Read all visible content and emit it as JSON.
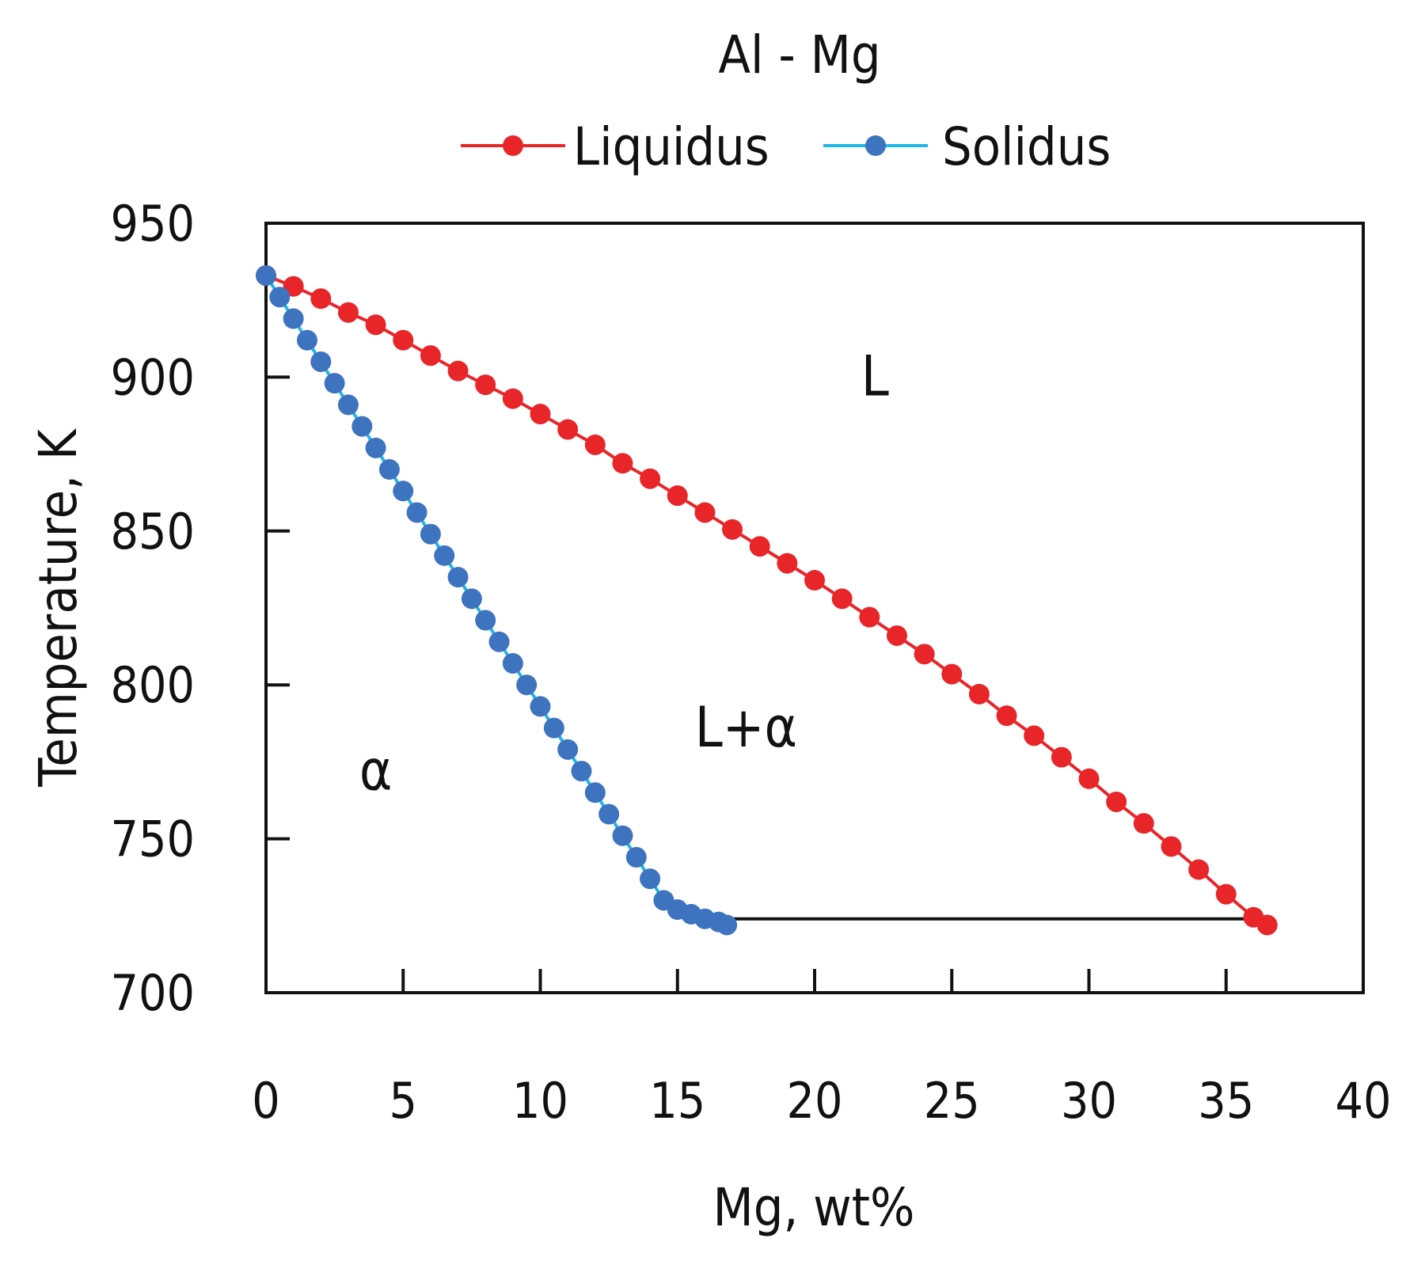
{
  "chart_data": {
    "type": "scatter",
    "title": "Al - Mg",
    "xlabel": "Mg, wt%",
    "ylabel": "Temperature, K",
    "xlim": [
      0,
      40
    ],
    "ylim": [
      700,
      950
    ],
    "xticks": [
      0,
      5,
      10,
      15,
      20,
      25,
      30,
      35,
      40
    ],
    "yticks": [
      700,
      750,
      800,
      850,
      900,
      950
    ],
    "grid": false,
    "legend_position": "top-center",
    "series": [
      {
        "name": "Liquidus",
        "color": "#e8262a",
        "line_color": "#e8262a",
        "marker": "circle",
        "x": [
          0,
          1,
          2,
          3,
          4,
          5,
          6,
          7,
          8,
          9,
          10,
          11,
          12,
          13,
          14,
          15,
          16,
          17,
          18,
          19,
          20,
          21,
          22,
          23,
          24,
          25,
          26,
          27,
          28,
          29,
          30,
          31,
          32,
          33,
          34,
          35,
          36,
          36.5
        ],
        "y": [
          933,
          929.5,
          925.5,
          921,
          917,
          912,
          907,
          902,
          897.5,
          893,
          888,
          883,
          878,
          872,
          867,
          861.5,
          856,
          850.5,
          845,
          839.5,
          834,
          828,
          822,
          816,
          810,
          803.5,
          797,
          790,
          783.5,
          776.5,
          769.5,
          762,
          755,
          747.5,
          740,
          732,
          724.5,
          722
        ]
      },
      {
        "name": "Solidus",
        "color": "#3e73c0",
        "line_color": "#1eb7e6",
        "marker": "circle",
        "x": [
          0,
          0.5,
          1,
          1.5,
          2,
          2.5,
          3,
          3.5,
          4,
          4.5,
          5,
          5.5,
          6,
          6.5,
          7,
          7.5,
          8,
          8.5,
          9,
          9.5,
          10,
          10.5,
          11,
          11.5,
          12,
          12.5,
          13,
          13.5,
          14,
          14.5,
          15,
          15.5,
          16,
          16.5,
          16.8
        ],
        "y": [
          933,
          926,
          919,
          912,
          905,
          898,
          891,
          884,
          877,
          870,
          863,
          856,
          849,
          842,
          835,
          828,
          821,
          814,
          807,
          800,
          793,
          786,
          779,
          772,
          765,
          758,
          751,
          744,
          737,
          730,
          727,
          725.5,
          724,
          723,
          722
        ]
      }
    ],
    "eutectic_line": {
      "x": [
        16.8,
        36.5
      ],
      "y": [
        724,
        724
      ],
      "color": "#111111"
    },
    "annotations": [
      {
        "text": "L",
        "x": 22.2,
        "y": 894
      },
      {
        "text": "L+α",
        "x": 17.5,
        "y": 780
      },
      {
        "text": "α",
        "x": 4,
        "y": 766
      }
    ]
  }
}
